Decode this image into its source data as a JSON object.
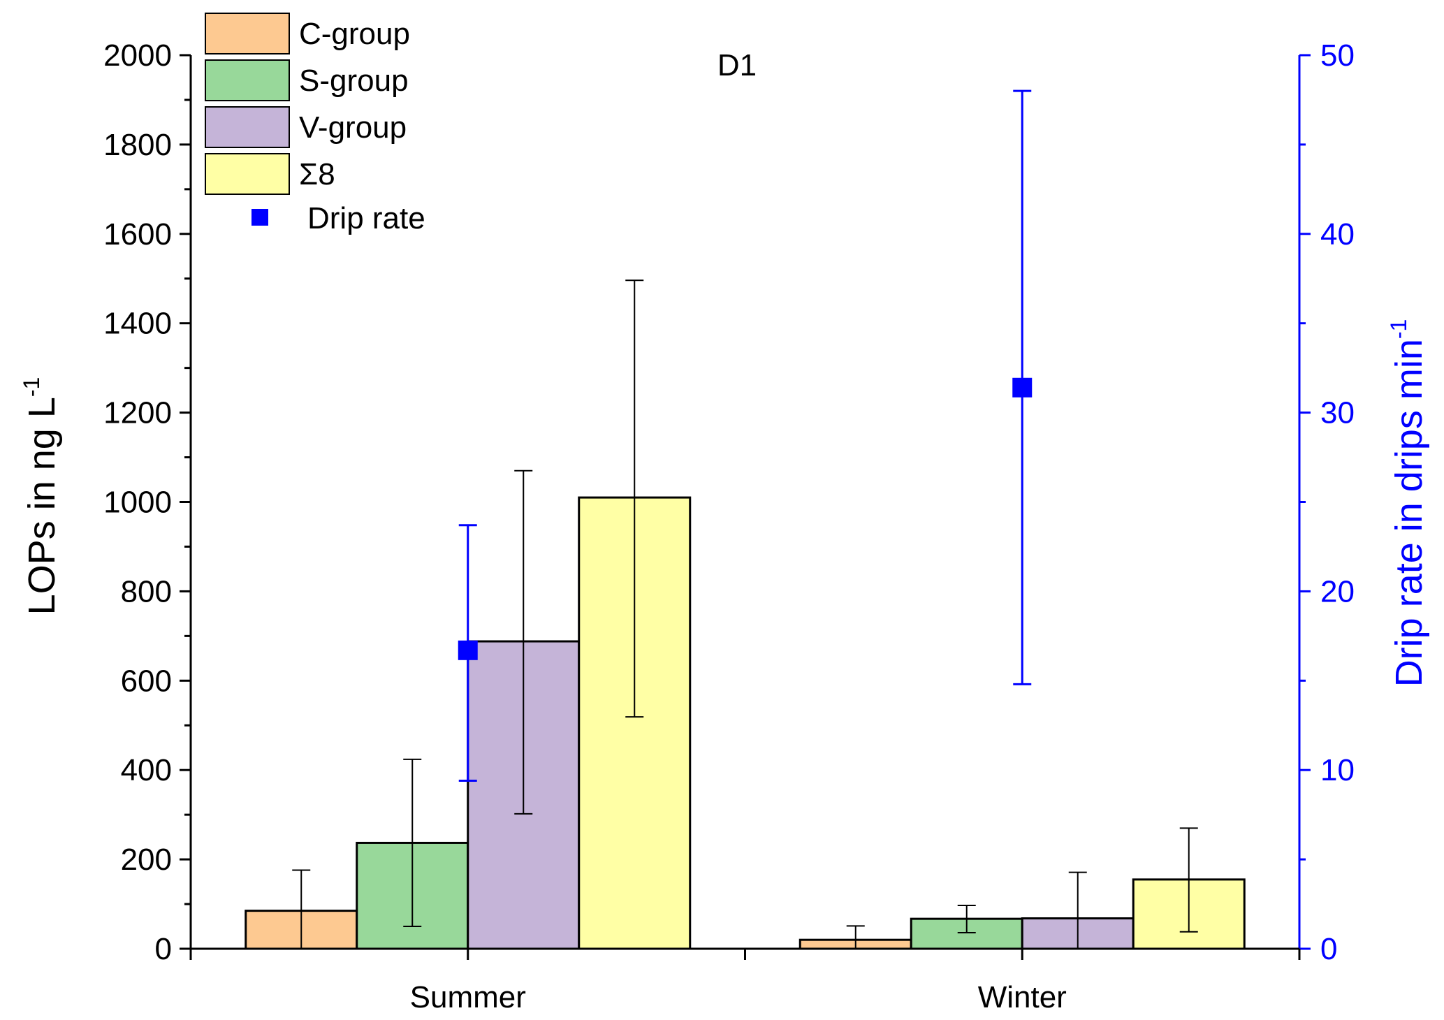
{
  "chart_data": {
    "type": "bar",
    "title": "D1",
    "categories": [
      "Summer",
      "Winter"
    ],
    "series": [
      {
        "name": "C-group",
        "color": "#FDC991",
        "values": [
          85,
          20
        ],
        "errors": [
          [
            0,
            176
          ],
          [
            0,
            51
          ]
        ]
      },
      {
        "name": "S-group",
        "color": "#98D89A",
        "values": [
          237,
          67
        ],
        "errors": [
          [
            50,
            424
          ],
          [
            36,
            97
          ]
        ]
      },
      {
        "name": "V-group",
        "color": "#C5B4D8",
        "values": [
          688,
          68
        ],
        "errors": [
          [
            302,
            1070
          ],
          [
            0,
            171
          ]
        ]
      },
      {
        "name": "Σ8",
        "color": "#FFFFA5",
        "values": [
          1010,
          155
        ],
        "errors": [
          [
            519,
            1496
          ],
          [
            38,
            270
          ]
        ]
      }
    ],
    "secondary_series": {
      "name": "Drip rate",
      "type": "scatter",
      "color": "#0000FF",
      "values": [
        16.7,
        31.4
      ],
      "errors": [
        [
          9.4,
          23.7
        ],
        [
          14.8,
          48.0
        ]
      ]
    },
    "ylabel": "LOPs in ng L",
    "ylabel_superscript": "-1",
    "ylim": [
      0,
      2000
    ],
    "yticks": [
      "0",
      "200",
      "400",
      "600",
      "800",
      "1000",
      "1200",
      "1400",
      "1600",
      "1800",
      "2000"
    ],
    "y2label": "Drip rate in drips min",
    "y2label_superscript": "-1",
    "y2lim": [
      0,
      50
    ],
    "y2ticks": [
      "0",
      "10",
      "20",
      "30",
      "40",
      "50"
    ],
    "legend_position": "top-left"
  }
}
